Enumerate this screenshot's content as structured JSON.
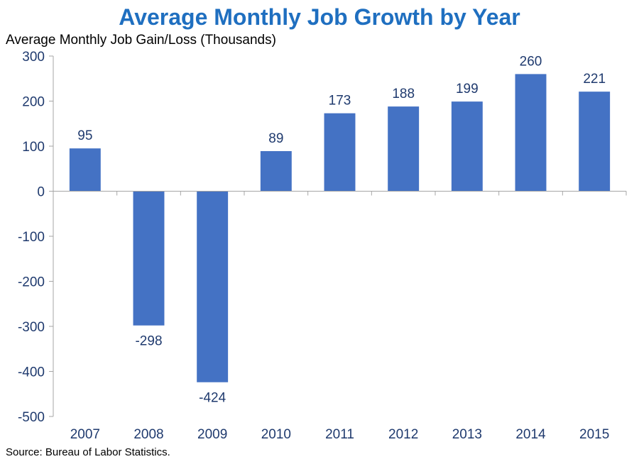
{
  "chart_data": {
    "type": "bar",
    "title": "Average Monthly Job Growth by Year",
    "ylabel": "Average Monthly Job Gain/Loss (Thousands)",
    "xlabel": "",
    "categories": [
      "2007",
      "2008",
      "2009",
      "2010",
      "2011",
      "2012",
      "2013",
      "2014",
      "2015"
    ],
    "values": [
      95,
      -298,
      -424,
      89,
      173,
      188,
      199,
      260,
      221
    ],
    "data_labels": [
      "95",
      "-298",
      "-424",
      "89",
      "173",
      "188",
      "199",
      "260",
      "221"
    ],
    "ylim": [
      -500,
      300
    ],
    "yticks": [
      300,
      200,
      100,
      0,
      -100,
      -200,
      -300,
      -400,
      -500
    ],
    "ytick_labels": [
      "300",
      "200",
      "100",
      "0",
      "-100",
      "-200",
      "-300",
      "-400",
      "-500"
    ],
    "grid": false,
    "legend": "none",
    "source": "Source: Bureau of Labor Statistics."
  },
  "colors": {
    "bar": "#4472c4",
    "title": "#1f6fc0",
    "axis": "#a6a6a6",
    "tick_text": "#1f3a6e",
    "label_text": "#1f3a6e"
  }
}
